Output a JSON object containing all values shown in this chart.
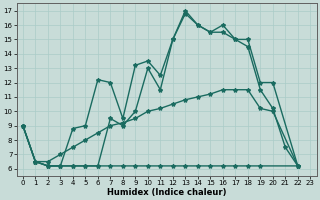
{
  "xlabel": "Humidex (Indice chaleur)",
  "xlim": [
    -0.5,
    23.5
  ],
  "ylim": [
    5.5,
    17.5
  ],
  "xticks": [
    0,
    1,
    2,
    3,
    4,
    5,
    6,
    7,
    8,
    9,
    10,
    11,
    12,
    13,
    14,
    15,
    16,
    17,
    18,
    19,
    20,
    21,
    22,
    23
  ],
  "yticks": [
    6,
    7,
    8,
    9,
    10,
    11,
    12,
    13,
    14,
    15,
    16,
    17
  ],
  "bg_color": "#c8dcd8",
  "line_color": "#1a6b60",
  "grid_color": "#aaccc8",
  "curves_x": [
    [
      0,
      1,
      2,
      3,
      4,
      5,
      6,
      7,
      8,
      9,
      10,
      11,
      12,
      13,
      14,
      15,
      16,
      17,
      18,
      19,
      20,
      22
    ],
    [
      0,
      1,
      2,
      3,
      4,
      5,
      6,
      7,
      8,
      9,
      10,
      11,
      12,
      13,
      14,
      15,
      16,
      17,
      18,
      19,
      20,
      21,
      22
    ],
    [
      0,
      1,
      2,
      3,
      4,
      5,
      6,
      7,
      8,
      9,
      10,
      11,
      12,
      13,
      14,
      15,
      16,
      17,
      18,
      19,
      22
    ],
    [
      0,
      1,
      2,
      3,
      4,
      5,
      6,
      7,
      8,
      9,
      10,
      11,
      12,
      13,
      14,
      15,
      16,
      17,
      18,
      19,
      20,
      22
    ]
  ],
  "curves_y": [
    [
      9.0,
      6.5,
      6.2,
      6.2,
      8.8,
      9.0,
      12.2,
      12.0,
      9.5,
      13.2,
      13.5,
      12.5,
      15.0,
      17.0,
      16.0,
      15.5,
      16.0,
      15.0,
      15.0,
      12.0,
      12.0,
      6.2
    ],
    [
      9.0,
      6.5,
      6.2,
      6.2,
      6.2,
      6.2,
      6.2,
      9.5,
      9.0,
      10.0,
      13.0,
      11.5,
      15.0,
      16.8,
      16.0,
      15.5,
      15.5,
      15.0,
      14.5,
      11.5,
      10.2,
      7.5,
      6.2
    ],
    [
      9.0,
      6.5,
      6.2,
      6.2,
      6.2,
      6.2,
      6.2,
      6.2,
      6.2,
      6.2,
      6.2,
      6.2,
      6.2,
      6.2,
      6.2,
      6.2,
      6.2,
      6.2,
      6.2,
      6.2,
      6.2
    ],
    [
      9.0,
      6.5,
      6.5,
      7.0,
      7.5,
      8.0,
      8.5,
      9.0,
      9.2,
      9.5,
      10.0,
      10.2,
      10.5,
      10.8,
      11.0,
      11.2,
      11.5,
      11.5,
      11.5,
      10.2,
      10.0,
      6.2
    ]
  ],
  "linewidth": 1.0,
  "markersize": 3.0,
  "ticksize": 5,
  "xlabel_fontsize": 6
}
